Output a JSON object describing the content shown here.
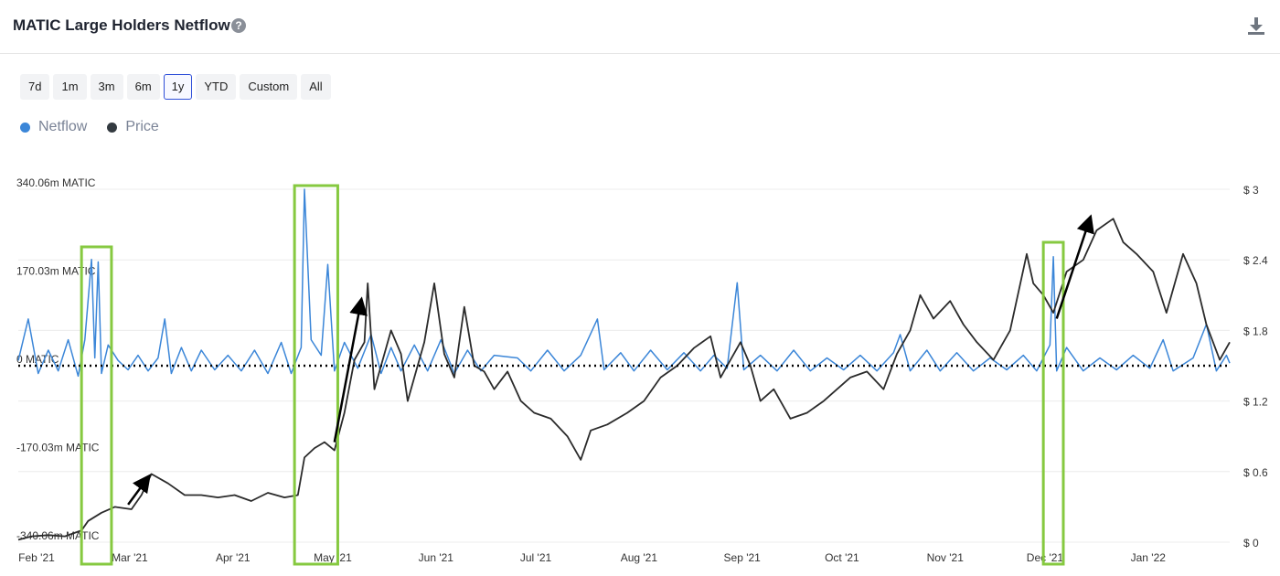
{
  "header": {
    "title": "MATIC Large Holders Netflow",
    "help_icon": "question-circle-icon",
    "download_icon": "download-icon"
  },
  "ranges": [
    {
      "label": "7d",
      "active": false
    },
    {
      "label": "1m",
      "active": false
    },
    {
      "label": "3m",
      "active": false
    },
    {
      "label": "6m",
      "active": false
    },
    {
      "label": "1y",
      "active": true
    },
    {
      "label": "YTD",
      "active": false
    },
    {
      "label": "Custom",
      "active": false
    },
    {
      "label": "All",
      "active": false
    }
  ],
  "legend": [
    {
      "label": "Netflow",
      "color": "#3b86d8"
    },
    {
      "label": "Price",
      "color": "#333a40"
    }
  ],
  "chart_data": {
    "type": "line",
    "x_labels": [
      "Feb '21",
      "Mar '21",
      "Apr '21",
      "May '21",
      "Jun '21",
      "Jul '21",
      "Aug '21",
      "Sep '21",
      "Oct '21",
      "Nov '21",
      "Dec '21",
      "Jan '22"
    ],
    "x_range": [
      "2021-02-01",
      "2022-01-31"
    ],
    "y_left": {
      "ticks": [
        "340.06m MATIC",
        "170.03m MATIC",
        "0 MATIC",
        "-170.03m MATIC",
        "-340.06m MATIC"
      ],
      "range": [
        -340.06,
        340.06
      ],
      "unit": "m MATIC"
    },
    "y_right": {
      "ticks": [
        "$ 3",
        "$ 2.4",
        "$ 1.8",
        "$ 1.2",
        "$ 0.6",
        "$ 0"
      ],
      "range": [
        0,
        3
      ]
    },
    "grid": true,
    "series": [
      {
        "name": "Netflow",
        "color": "#3b86d8",
        "points": [
          [
            "2021-02-01",
            10
          ],
          [
            "2021-02-04",
            90
          ],
          [
            "2021-02-07",
            -15
          ],
          [
            "2021-02-10",
            30
          ],
          [
            "2021-02-13",
            -10
          ],
          [
            "2021-02-16",
            50
          ],
          [
            "2021-02-19",
            -20
          ],
          [
            "2021-02-21",
            50
          ],
          [
            "2021-02-23",
            205
          ],
          [
            "2021-02-24",
            15
          ],
          [
            "2021-02-25",
            200
          ],
          [
            "2021-02-26",
            -15
          ],
          [
            "2021-02-28",
            40
          ],
          [
            "2021-03-03",
            10
          ],
          [
            "2021-03-06",
            -8
          ],
          [
            "2021-03-09",
            20
          ],
          [
            "2021-03-12",
            -10
          ],
          [
            "2021-03-15",
            15
          ],
          [
            "2021-03-17",
            90
          ],
          [
            "2021-03-19",
            -15
          ],
          [
            "2021-03-22",
            35
          ],
          [
            "2021-03-25",
            -10
          ],
          [
            "2021-03-28",
            30
          ],
          [
            "2021-04-01",
            -8
          ],
          [
            "2021-04-05",
            20
          ],
          [
            "2021-04-09",
            -10
          ],
          [
            "2021-04-13",
            30
          ],
          [
            "2021-04-17",
            -15
          ],
          [
            "2021-04-21",
            45
          ],
          [
            "2021-04-24",
            -15
          ],
          [
            "2021-04-27",
            35
          ],
          [
            "2021-04-28",
            340
          ],
          [
            "2021-04-30",
            50
          ],
          [
            "2021-05-03",
            20
          ],
          [
            "2021-05-05",
            195
          ],
          [
            "2021-05-07",
            -10
          ],
          [
            "2021-05-10",
            45
          ],
          [
            "2021-05-14",
            -5
          ],
          [
            "2021-05-18",
            60
          ],
          [
            "2021-05-21",
            -15
          ],
          [
            "2021-05-24",
            35
          ],
          [
            "2021-05-27",
            -10
          ],
          [
            "2021-05-31",
            40
          ],
          [
            "2021-06-04",
            -10
          ],
          [
            "2021-06-08",
            50
          ],
          [
            "2021-06-12",
            -15
          ],
          [
            "2021-06-16",
            30
          ],
          [
            "2021-06-20",
            -10
          ],
          [
            "2021-06-24",
            20
          ],
          [
            "2021-07-01",
            15
          ],
          [
            "2021-07-05",
            -10
          ],
          [
            "2021-07-10",
            30
          ],
          [
            "2021-07-15",
            -10
          ],
          [
            "2021-07-20",
            20
          ],
          [
            "2021-07-25",
            90
          ],
          [
            "2021-07-27",
            -8
          ],
          [
            "2021-08-01",
            25
          ],
          [
            "2021-08-05",
            -10
          ],
          [
            "2021-08-10",
            30
          ],
          [
            "2021-08-15",
            -8
          ],
          [
            "2021-08-20",
            25
          ],
          [
            "2021-08-25",
            -10
          ],
          [
            "2021-08-29",
            20
          ],
          [
            "2021-09-02",
            -5
          ],
          [
            "2021-09-05",
            160
          ],
          [
            "2021-09-07",
            -8
          ],
          [
            "2021-09-12",
            20
          ],
          [
            "2021-09-17",
            -10
          ],
          [
            "2021-09-22",
            30
          ],
          [
            "2021-09-27",
            -10
          ],
          [
            "2021-10-02",
            15
          ],
          [
            "2021-10-07",
            -8
          ],
          [
            "2021-10-12",
            20
          ],
          [
            "2021-10-17",
            -10
          ],
          [
            "2021-10-22",
            25
          ],
          [
            "2021-10-24",
            60
          ],
          [
            "2021-10-27",
            -10
          ],
          [
            "2021-11-01",
            30
          ],
          [
            "2021-11-05",
            -10
          ],
          [
            "2021-11-10",
            25
          ],
          [
            "2021-11-15",
            -10
          ],
          [
            "2021-11-20",
            15
          ],
          [
            "2021-11-25",
            -8
          ],
          [
            "2021-11-30",
            20
          ],
          [
            "2021-12-04",
            -10
          ],
          [
            "2021-12-08",
            40
          ],
          [
            "2021-12-09",
            210
          ],
          [
            "2021-12-10",
            -10
          ],
          [
            "2021-12-13",
            35
          ],
          [
            "2021-12-18",
            -10
          ],
          [
            "2021-12-23",
            15
          ],
          [
            "2021-12-28",
            -8
          ],
          [
            "2022-01-02",
            20
          ],
          [
            "2022-01-07",
            -5
          ],
          [
            "2022-01-11",
            50
          ],
          [
            "2022-01-14",
            -10
          ],
          [
            "2022-01-20",
            15
          ],
          [
            "2022-01-24",
            80
          ],
          [
            "2022-01-27",
            -10
          ],
          [
            "2022-01-30",
            20
          ],
          [
            "2022-01-31",
            5
          ]
        ]
      },
      {
        "name": "Price",
        "color": "#2b2b2b",
        "points": [
          [
            "2021-02-01",
            0.02
          ],
          [
            "2021-02-05",
            0.05
          ],
          [
            "2021-02-10",
            0.06
          ],
          [
            "2021-02-15",
            0.05
          ],
          [
            "2021-02-20",
            0.1
          ],
          [
            "2021-02-22",
            0.18
          ],
          [
            "2021-02-26",
            0.25
          ],
          [
            "2021-03-02",
            0.3
          ],
          [
            "2021-03-07",
            0.28
          ],
          [
            "2021-03-10",
            0.4
          ],
          [
            "2021-03-13",
            0.58
          ],
          [
            "2021-03-18",
            0.5
          ],
          [
            "2021-03-23",
            0.4
          ],
          [
            "2021-03-28",
            0.4
          ],
          [
            "2021-04-02",
            0.38
          ],
          [
            "2021-04-07",
            0.4
          ],
          [
            "2021-04-12",
            0.35
          ],
          [
            "2021-04-17",
            0.42
          ],
          [
            "2021-04-22",
            0.38
          ],
          [
            "2021-04-26",
            0.4
          ],
          [
            "2021-04-28",
            0.72
          ],
          [
            "2021-05-01",
            0.8
          ],
          [
            "2021-05-04",
            0.85
          ],
          [
            "2021-05-07",
            0.78
          ],
          [
            "2021-05-10",
            1.1
          ],
          [
            "2021-05-13",
            1.55
          ],
          [
            "2021-05-16",
            1.7
          ],
          [
            "2021-05-17",
            2.2
          ],
          [
            "2021-05-19",
            1.3
          ],
          [
            "2021-05-21",
            1.5
          ],
          [
            "2021-05-24",
            1.8
          ],
          [
            "2021-05-27",
            1.6
          ],
          [
            "2021-05-29",
            1.2
          ],
          [
            "2021-06-01",
            1.5
          ],
          [
            "2021-06-03",
            1.7
          ],
          [
            "2021-06-06",
            2.2
          ],
          [
            "2021-06-09",
            1.6
          ],
          [
            "2021-06-12",
            1.4
          ],
          [
            "2021-06-15",
            2.0
          ],
          [
            "2021-06-18",
            1.5
          ],
          [
            "2021-06-21",
            1.45
          ],
          [
            "2021-06-24",
            1.3
          ],
          [
            "2021-06-28",
            1.45
          ],
          [
            "2021-07-02",
            1.2
          ],
          [
            "2021-07-06",
            1.1
          ],
          [
            "2021-07-11",
            1.05
          ],
          [
            "2021-07-16",
            0.9
          ],
          [
            "2021-07-20",
            0.7
          ],
          [
            "2021-07-23",
            0.95
          ],
          [
            "2021-07-28",
            1.0
          ],
          [
            "2021-08-03",
            1.1
          ],
          [
            "2021-08-08",
            1.2
          ],
          [
            "2021-08-13",
            1.4
          ],
          [
            "2021-08-18",
            1.5
          ],
          [
            "2021-08-23",
            1.65
          ],
          [
            "2021-08-28",
            1.75
          ],
          [
            "2021-08-31",
            1.4
          ],
          [
            "2021-09-03",
            1.55
          ],
          [
            "2021-09-06",
            1.7
          ],
          [
            "2021-09-09",
            1.5
          ],
          [
            "2021-09-12",
            1.2
          ],
          [
            "2021-09-16",
            1.3
          ],
          [
            "2021-09-21",
            1.05
          ],
          [
            "2021-09-26",
            1.1
          ],
          [
            "2021-10-01",
            1.2
          ],
          [
            "2021-10-05",
            1.3
          ],
          [
            "2021-10-09",
            1.4
          ],
          [
            "2021-10-14",
            1.45
          ],
          [
            "2021-10-19",
            1.3
          ],
          [
            "2021-10-23",
            1.6
          ],
          [
            "2021-10-27",
            1.8
          ],
          [
            "2021-10-30",
            2.1
          ],
          [
            "2021-11-03",
            1.9
          ],
          [
            "2021-11-08",
            2.05
          ],
          [
            "2021-11-12",
            1.85
          ],
          [
            "2021-11-16",
            1.7
          ],
          [
            "2021-11-21",
            1.55
          ],
          [
            "2021-11-26",
            1.8
          ],
          [
            "2021-12-01",
            2.45
          ],
          [
            "2021-12-03",
            2.2
          ],
          [
            "2021-12-06",
            2.1
          ],
          [
            "2021-12-09",
            1.95
          ],
          [
            "2021-12-13",
            2.3
          ],
          [
            "2021-12-18",
            2.4
          ],
          [
            "2021-12-22",
            2.65
          ],
          [
            "2021-12-27",
            2.75
          ],
          [
            "2021-12-30",
            2.55
          ],
          [
            "2022-01-03",
            2.45
          ],
          [
            "2022-01-08",
            2.3
          ],
          [
            "2022-01-12",
            1.95
          ],
          [
            "2022-01-17",
            2.45
          ],
          [
            "2022-01-21",
            2.2
          ],
          [
            "2022-01-24",
            1.85
          ],
          [
            "2022-01-28",
            1.55
          ],
          [
            "2022-01-31",
            1.7
          ]
        ]
      }
    ],
    "annotations": {
      "highlight_boxes_color": "#86c940",
      "arrow_color": "#000000"
    }
  }
}
